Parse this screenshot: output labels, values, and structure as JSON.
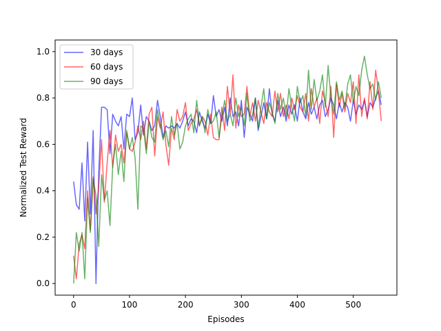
{
  "chart_data": {
    "type": "line",
    "title": "",
    "xlabel": "Episodes",
    "ylabel": "Normalized Test Reward",
    "xlim": [
      -33,
      578
    ],
    "ylim": [
      -0.05,
      1.05
    ],
    "xticks": [
      0,
      100,
      200,
      300,
      400,
      500
    ],
    "yticks": [
      0.0,
      0.2,
      0.4,
      0.6,
      0.8,
      1.0
    ],
    "xtick_labels": [
      "0",
      "100",
      "200",
      "300",
      "400",
      "500"
    ],
    "ytick_labels": [
      "0.0",
      "0.2",
      "0.4",
      "0.6",
      "0.8",
      "1.0"
    ],
    "grid": false,
    "legend_position": "top-left",
    "x": [
      0,
      5,
      10,
      15,
      20,
      25,
      30,
      35,
      40,
      45,
      50,
      55,
      60,
      65,
      70,
      75,
      80,
      85,
      90,
      95,
      100,
      105,
      110,
      115,
      120,
      125,
      130,
      135,
      140,
      145,
      150,
      155,
      160,
      165,
      170,
      175,
      180,
      185,
      190,
      195,
      200,
      205,
      210,
      215,
      220,
      225,
      230,
      235,
      240,
      245,
      250,
      255,
      260,
      265,
      270,
      275,
      280,
      285,
      290,
      295,
      300,
      305,
      310,
      315,
      320,
      325,
      330,
      335,
      340,
      345,
      350,
      355,
      360,
      365,
      370,
      375,
      380,
      385,
      390,
      395,
      400,
      405,
      410,
      415,
      420,
      425,
      430,
      435,
      440,
      445,
      450,
      455,
      460,
      465,
      470,
      475,
      480,
      485,
      490,
      495,
      500,
      505,
      510,
      515,
      520,
      525,
      530,
      535,
      540,
      545,
      550
    ],
    "series": [
      {
        "name": "30 days",
        "color": "#0000ff",
        "values": [
          0.44,
          0.34,
          0.32,
          0.52,
          0.27,
          0.61,
          0.3,
          0.66,
          0.0,
          0.48,
          0.76,
          0.76,
          0.75,
          0.56,
          0.73,
          0.7,
          0.68,
          0.72,
          0.58,
          0.73,
          0.72,
          0.8,
          0.62,
          0.65,
          0.77,
          0.64,
          0.72,
          0.7,
          0.66,
          0.68,
          0.79,
          0.72,
          0.63,
          0.68,
          0.67,
          0.68,
          0.67,
          0.69,
          0.67,
          0.7,
          0.74,
          0.68,
          0.71,
          0.7,
          0.65,
          0.74,
          0.7,
          0.67,
          0.73,
          0.69,
          0.81,
          0.72,
          0.75,
          0.7,
          0.76,
          0.68,
          0.8,
          0.72,
          0.74,
          0.68,
          0.79,
          0.63,
          0.76,
          0.73,
          0.7,
          0.8,
          0.66,
          0.72,
          0.78,
          0.71,
          0.84,
          0.73,
          0.7,
          0.79,
          0.72,
          0.76,
          0.7,
          0.77,
          0.73,
          0.77,
          0.7,
          0.8,
          0.74,
          0.71,
          0.78,
          0.73,
          0.76,
          0.71,
          0.77,
          0.79,
          0.72,
          0.75,
          0.8,
          0.77,
          0.71,
          0.78,
          0.74,
          0.78,
          0.76,
          0.7,
          0.79,
          0.73,
          0.77,
          0.75,
          0.79,
          0.72,
          0.78,
          0.76,
          0.8,
          0.83,
          0.77
        ]
      },
      {
        "name": "60 days",
        "color": "#ff0000",
        "values": [
          0.12,
          0.02,
          0.17,
          0.21,
          0.15,
          0.4,
          0.23,
          0.46,
          0.3,
          0.42,
          0.62,
          0.35,
          0.52,
          0.66,
          0.5,
          0.64,
          0.57,
          0.6,
          0.52,
          0.65,
          0.58,
          0.57,
          0.61,
          0.68,
          0.62,
          0.7,
          0.58,
          0.73,
          0.76,
          0.55,
          0.72,
          0.67,
          0.74,
          0.6,
          0.51,
          0.67,
          0.62,
          0.75,
          0.7,
          0.72,
          0.78,
          0.66,
          0.69,
          0.71,
          0.75,
          0.68,
          0.72,
          0.7,
          0.64,
          0.73,
          0.63,
          0.62,
          0.62,
          0.76,
          0.66,
          0.85,
          0.73,
          0.9,
          0.67,
          0.77,
          0.72,
          0.73,
          0.85,
          0.72,
          0.78,
          0.7,
          0.79,
          0.74,
          0.69,
          0.78,
          0.74,
          0.72,
          0.83,
          0.74,
          0.82,
          0.72,
          0.77,
          0.71,
          0.8,
          0.75,
          0.81,
          0.76,
          0.74,
          0.82,
          0.7,
          0.84,
          0.76,
          0.8,
          0.69,
          0.83,
          0.78,
          0.72,
          0.85,
          0.63,
          0.86,
          0.76,
          0.82,
          0.74,
          0.82,
          0.78,
          0.87,
          0.69,
          0.9,
          0.72,
          0.8,
          0.71,
          0.87,
          0.75,
          0.92,
          0.83,
          0.7
        ]
      },
      {
        "name": "90 days",
        "color": "#008000",
        "values": [
          0.0,
          0.22,
          0.14,
          0.22,
          0.02,
          0.37,
          0.22,
          0.45,
          0.38,
          0.16,
          0.47,
          0.36,
          0.4,
          0.25,
          0.51,
          0.6,
          0.47,
          0.57,
          0.44,
          0.66,
          0.58,
          0.63,
          0.54,
          0.32,
          0.68,
          0.67,
          0.56,
          0.7,
          0.63,
          0.61,
          0.75,
          0.68,
          0.62,
          0.66,
          0.59,
          0.72,
          0.64,
          0.69,
          0.58,
          0.61,
          0.68,
          0.71,
          0.73,
          0.65,
          0.79,
          0.68,
          0.72,
          0.65,
          0.75,
          0.69,
          0.7,
          0.74,
          0.63,
          0.72,
          0.79,
          0.7,
          0.73,
          0.68,
          0.8,
          0.72,
          0.76,
          0.68,
          0.82,
          0.7,
          0.73,
          0.8,
          0.67,
          0.76,
          0.84,
          0.71,
          0.78,
          0.74,
          0.69,
          0.82,
          0.75,
          0.8,
          0.72,
          0.84,
          0.76,
          0.7,
          0.85,
          0.78,
          0.81,
          0.72,
          0.92,
          0.75,
          0.88,
          0.79,
          0.83,
          0.9,
          0.76,
          0.94,
          0.8,
          0.73,
          0.87,
          0.79,
          0.83,
          0.76,
          0.86,
          0.9,
          0.78,
          0.85,
          0.81,
          0.92,
          0.98,
          0.9,
          0.84,
          0.86,
          0.79,
          0.87,
          0.8
        ]
      }
    ]
  }
}
